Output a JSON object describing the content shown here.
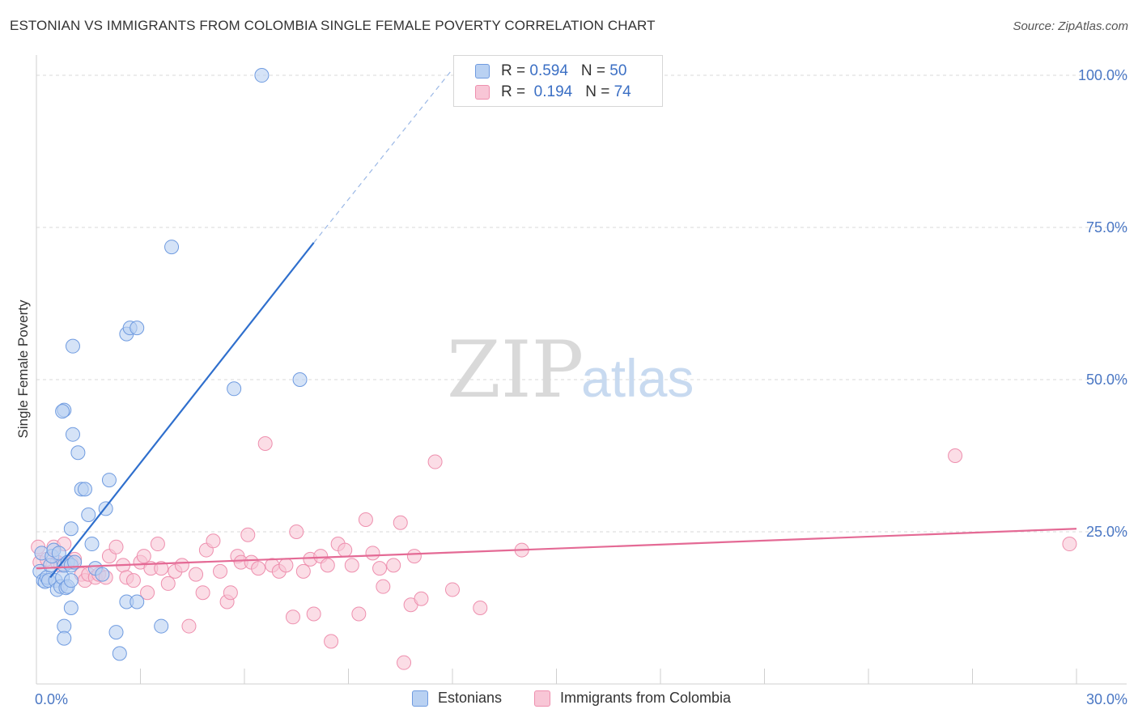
{
  "header": {
    "title": "ESTONIAN VS IMMIGRANTS FROM COLOMBIA SINGLE FEMALE POVERTY CORRELATION CHART",
    "source": "Source: ZipAtlas.com"
  },
  "watermark": {
    "zip": "ZIP",
    "atlas": "atlas"
  },
  "legend": {
    "rows": [
      {
        "r_label": "R = ",
        "r_value": "0.594",
        "n_label": "N = ",
        "n_value": "50"
      },
      {
        "r_label": "R = ",
        "r_value": " 0.194",
        "n_label": "N = ",
        "n_value": "74"
      }
    ]
  },
  "bottom_legend": [
    "Estonians",
    "Immigrants from Colombia"
  ],
  "colors": {
    "blue_fill": "#b9d1f2",
    "blue_stroke": "#6f9be0",
    "blue_line": "#2f6fcd",
    "pink_fill": "#f8c6d6",
    "pink_stroke": "#ee8fae",
    "pink_line": "#e46a95",
    "grid": "#d9d9d9",
    "axis_text": "#4a77c4"
  },
  "chart_data": {
    "type": "scatter",
    "title": "ESTONIAN VS IMMIGRANTS FROM COLOMBIA SINGLE FEMALE POVERTY CORRELATION CHART",
    "xlabel": "",
    "ylabel": "Single Female Poverty",
    "xlim": [
      0,
      30
    ],
    "ylim": [
      0,
      102
    ],
    "x_tick_labels": [
      "0.0%",
      "30.0%"
    ],
    "y_ticks": [
      25,
      50,
      75,
      100
    ],
    "y_tick_labels": [
      "25.0%",
      "50.0%",
      "75.0%",
      "100.0%"
    ],
    "grid": true,
    "legend_position": "top-center",
    "series": [
      {
        "name": "Estonians",
        "r": 0.594,
        "n": 50,
        "trend": {
          "x0": 0.4,
          "y0": 17.5,
          "x1": 8.0,
          "y1": 72.5,
          "dashed_to_x": 12.0,
          "dashed_to_y": 101
        },
        "points": [
          [
            0.1,
            18.5
          ],
          [
            0.15,
            21.5
          ],
          [
            0.2,
            17.0
          ],
          [
            0.25,
            16.8
          ],
          [
            0.3,
            17.5
          ],
          [
            0.35,
            17.0
          ],
          [
            0.4,
            19.5
          ],
          [
            0.45,
            21.0
          ],
          [
            0.5,
            22.0
          ],
          [
            0.55,
            17.0
          ],
          [
            0.6,
            15.5
          ],
          [
            0.65,
            21.5
          ],
          [
            0.7,
            16.0
          ],
          [
            0.75,
            17.5
          ],
          [
            0.8,
            19.5
          ],
          [
            0.8,
            45.0
          ],
          [
            0.85,
            15.8
          ],
          [
            0.9,
            20.0
          ],
          [
            0.9,
            16.0
          ],
          [
            1.0,
            17.0
          ],
          [
            1.0,
            12.5
          ],
          [
            0.8,
            9.5
          ],
          [
            0.8,
            7.5
          ],
          [
            0.75,
            44.8
          ],
          [
            1.05,
            41.0
          ],
          [
            1.05,
            55.5
          ],
          [
            1.0,
            19.5
          ],
          [
            1.1,
            20.0
          ],
          [
            1.2,
            38.0
          ],
          [
            1.3,
            32.0
          ],
          [
            1.4,
            32.0
          ],
          [
            1.5,
            27.8
          ],
          [
            1.6,
            23.0
          ],
          [
            1.7,
            19.0
          ],
          [
            1.9,
            18.0
          ],
          [
            2.0,
            28.8
          ],
          [
            2.1,
            33.5
          ],
          [
            2.3,
            8.5
          ],
          [
            2.4,
            5.0
          ],
          [
            2.6,
            13.5
          ],
          [
            2.6,
            57.5
          ],
          [
            2.7,
            58.5
          ],
          [
            2.9,
            58.5
          ],
          [
            2.9,
            13.5
          ],
          [
            3.6,
            9.5
          ],
          [
            3.9,
            71.8
          ],
          [
            5.7,
            48.5
          ],
          [
            6.5,
            100.0
          ],
          [
            7.6,
            50.0
          ],
          [
            1.0,
            25.5
          ]
        ]
      },
      {
        "name": "Immigrants from Colombia",
        "r": 0.194,
        "n": 74,
        "trend": {
          "x0": 0.0,
          "y0": 19.0,
          "x1": 30.0,
          "y1": 25.5
        },
        "points": [
          [
            0.05,
            22.5
          ],
          [
            0.1,
            20.0
          ],
          [
            0.3,
            20.5
          ],
          [
            0.5,
            22.5
          ],
          [
            0.6,
            20.0
          ],
          [
            0.7,
            19.5
          ],
          [
            0.8,
            23.0
          ],
          [
            1.0,
            20.0
          ],
          [
            1.1,
            20.5
          ],
          [
            1.3,
            18.0
          ],
          [
            1.4,
            17.0
          ],
          [
            1.5,
            18.0
          ],
          [
            1.7,
            17.5
          ],
          [
            1.8,
            18.0
          ],
          [
            2.0,
            17.5
          ],
          [
            2.1,
            21.0
          ],
          [
            2.3,
            22.5
          ],
          [
            2.5,
            19.5
          ],
          [
            2.6,
            17.5
          ],
          [
            2.8,
            17.0
          ],
          [
            3.0,
            20.0
          ],
          [
            3.1,
            21.0
          ],
          [
            3.2,
            15.0
          ],
          [
            3.3,
            19.0
          ],
          [
            3.5,
            23.0
          ],
          [
            3.6,
            19.0
          ],
          [
            3.8,
            16.5
          ],
          [
            4.0,
            18.5
          ],
          [
            4.2,
            19.5
          ],
          [
            4.4,
            9.5
          ],
          [
            4.6,
            18.0
          ],
          [
            4.8,
            15.0
          ],
          [
            4.9,
            22.0
          ],
          [
            5.1,
            23.5
          ],
          [
            5.3,
            18.5
          ],
          [
            5.5,
            13.5
          ],
          [
            5.6,
            15.0
          ],
          [
            5.8,
            21.0
          ],
          [
            5.9,
            20.0
          ],
          [
            6.1,
            24.5
          ],
          [
            6.2,
            20.0
          ],
          [
            6.4,
            19.0
          ],
          [
            6.6,
            39.5
          ],
          [
            6.8,
            19.5
          ],
          [
            7.0,
            18.5
          ],
          [
            7.2,
            19.5
          ],
          [
            7.4,
            11.0
          ],
          [
            7.5,
            25.0
          ],
          [
            7.7,
            18.5
          ],
          [
            7.9,
            20.5
          ],
          [
            8.0,
            11.5
          ],
          [
            8.2,
            21.0
          ],
          [
            8.4,
            19.5
          ],
          [
            8.5,
            7.0
          ],
          [
            8.7,
            23.0
          ],
          [
            8.9,
            22.0
          ],
          [
            9.1,
            19.5
          ],
          [
            9.3,
            11.5
          ],
          [
            9.5,
            27.0
          ],
          [
            9.7,
            21.5
          ],
          [
            9.9,
            19.0
          ],
          [
            10.0,
            16.0
          ],
          [
            10.3,
            19.5
          ],
          [
            10.5,
            26.5
          ],
          [
            10.6,
            3.5
          ],
          [
            10.8,
            13.0
          ],
          [
            10.9,
            21.0
          ],
          [
            11.1,
            14.0
          ],
          [
            11.5,
            36.5
          ],
          [
            12.0,
            15.5
          ],
          [
            12.8,
            12.5
          ],
          [
            14.0,
            22.0
          ],
          [
            26.5,
            37.5
          ],
          [
            29.8,
            23.0
          ]
        ]
      }
    ]
  }
}
